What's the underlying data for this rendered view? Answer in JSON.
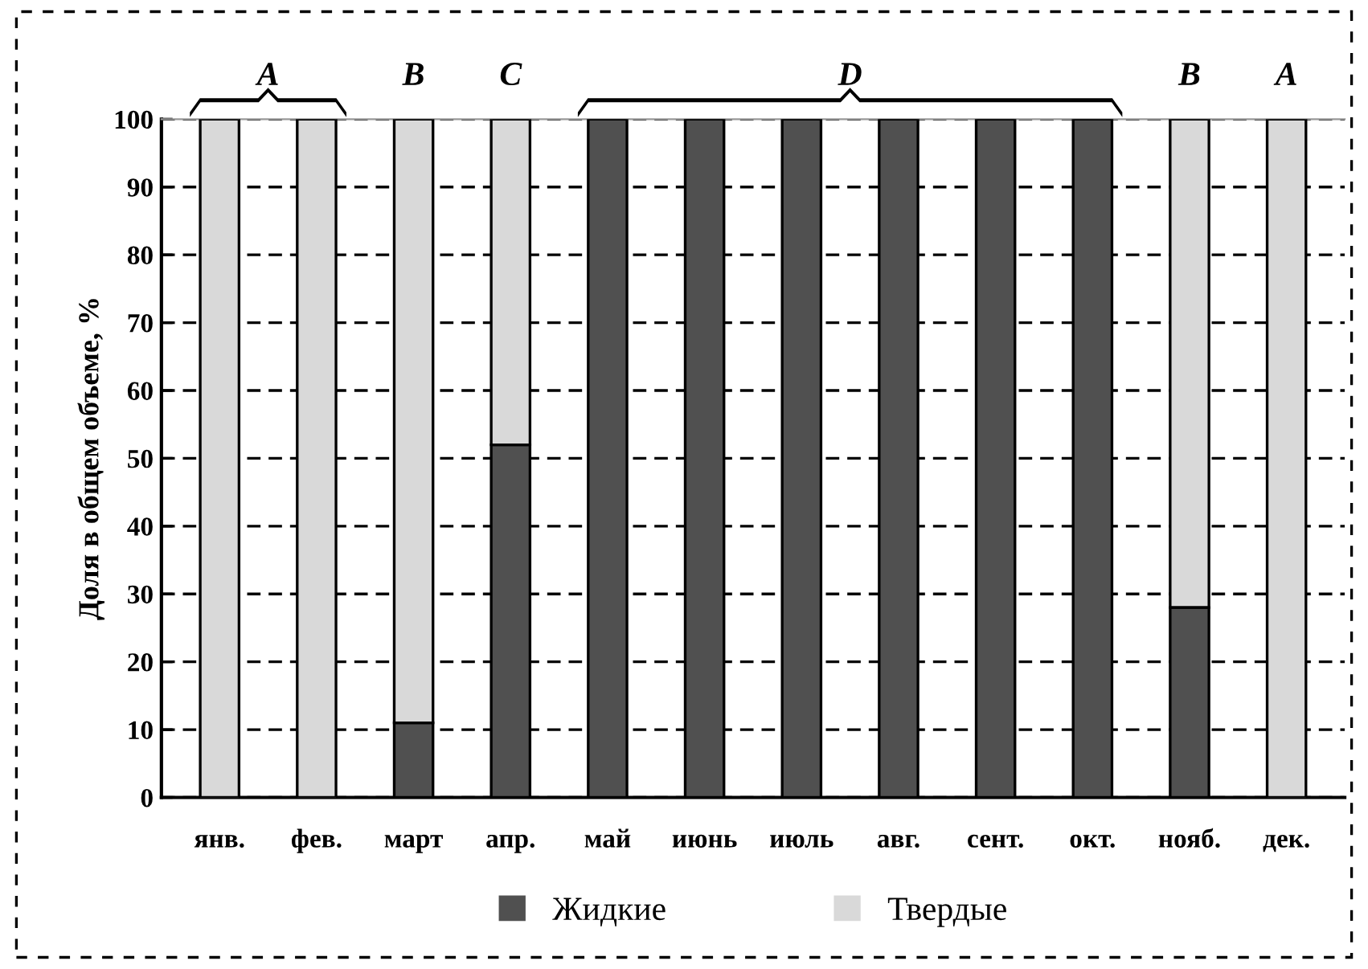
{
  "chart_data": {
    "type": "bar",
    "stacked": true,
    "ylabel": "Доля в общем объеме, %",
    "categories": [
      "янв.",
      "фев.",
      "март",
      "апр.",
      "май",
      "июнь",
      "июль",
      "авг.",
      "сент.",
      "окт.",
      "нояб.",
      "дек."
    ],
    "series": [
      {
        "name": "Жидкие",
        "color": "#505050",
        "values": [
          0,
          0,
          11,
          52,
          100,
          100,
          100,
          100,
          100,
          100,
          28,
          0
        ]
      },
      {
        "name": "Твердые",
        "color": "#d9d9d9",
        "values": [
          100,
          100,
          89,
          48,
          0,
          0,
          0,
          0,
          0,
          0,
          72,
          100
        ]
      }
    ],
    "annotations": [
      "A",
      "B",
      "C",
      "D",
      "B",
      "A"
    ],
    "ylim": [
      0,
      100
    ],
    "yticks": [
      0,
      10,
      20,
      30,
      40,
      50,
      60,
      70,
      80,
      90,
      100
    ],
    "grid": "y",
    "legend": "bottom"
  }
}
